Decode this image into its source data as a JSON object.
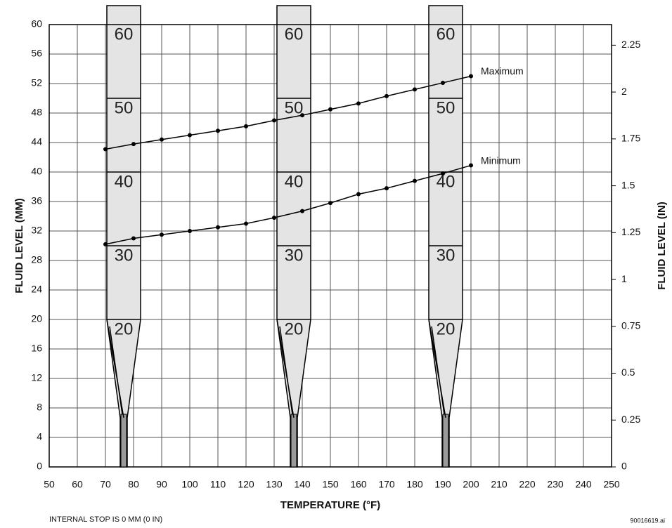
{
  "chart_data": {
    "type": "line",
    "ylabel": "FLUID LEVEL (MM)",
    "y2label": "FLUID LEVEL (IN)",
    "xlabel": "TEMPERATURE (°F)",
    "footnote": "INTERNAL STOP IS 0 MM (0 IN)",
    "figure_id": "90016619.ai",
    "xlim": [
      50,
      250
    ],
    "xticks": [
      50,
      60,
      70,
      80,
      90,
      100,
      110,
      120,
      130,
      140,
      150,
      160,
      170,
      180,
      190,
      200,
      210,
      220,
      230,
      240,
      250
    ],
    "ylim": [
      0,
      60
    ],
    "yticks": [
      0,
      4,
      8,
      12,
      16,
      20,
      24,
      28,
      32,
      36,
      40,
      44,
      48,
      52,
      56,
      60
    ],
    "y2lim": [
      0,
      2.36
    ],
    "y2ticks": [
      0,
      0.25,
      0.5,
      0.75,
      1,
      1.25,
      1.5,
      1.75,
      2,
      2.25
    ],
    "grid": true,
    "dipstick_levels": [
      60,
      50,
      40,
      30,
      20
    ],
    "x": [
      70,
      80,
      90,
      100,
      110,
      120,
      130,
      140,
      150,
      160,
      170,
      180,
      190,
      200
    ],
    "series": [
      {
        "name": "Maximum",
        "color": "#000000",
        "values": [
          43.1,
          43.8,
          44.4,
          45.0,
          45.6,
          46.2,
          47.0,
          47.7,
          48.5,
          49.3,
          50.3,
          51.2,
          52.1,
          53.0
        ]
      },
      {
        "name": "Minimum",
        "color": "#000000",
        "values": [
          30.2,
          31.0,
          31.5,
          32.0,
          32.5,
          33.0,
          33.8,
          34.7,
          35.8,
          37.0,
          37.8,
          38.8,
          39.8,
          40.9
        ]
      }
    ]
  }
}
